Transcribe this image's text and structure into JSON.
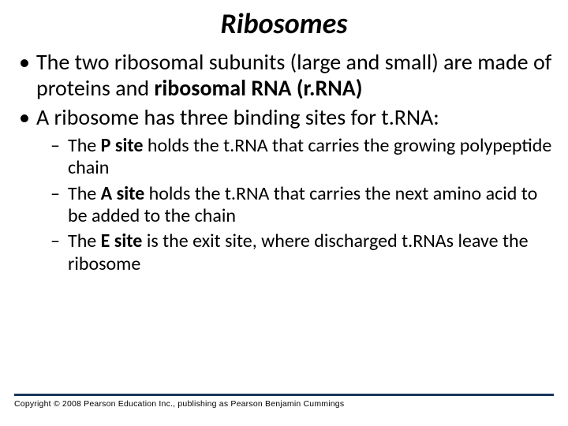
{
  "title": "Ribosomes",
  "bullets": {
    "b1_pre": "The two ribosomal subunits (large and small) are made of proteins and ",
    "b1_bold": "ribosomal RNA (r.RNA)",
    "b2": "A ribosome has three binding sites for t.RNA:",
    "sub1_pre": "The ",
    "sub1_bold": "P site",
    "sub1_post": " holds the t.RNA that carries the growing polypeptide chain",
    "sub2_pre": "The ",
    "sub2_bold": "A site",
    "sub2_post": " holds the t.RNA that carries the next amino acid to be added to the chain",
    "sub3_pre": "The ",
    "sub3_bold": "E site",
    "sub3_post": " is the exit site, where discharged t.RNAs leave the ribosome"
  },
  "footer": {
    "rule_color": "#17365d",
    "copyright": "Copyright © 2008 Pearson Education Inc., publishing as Pearson Benjamin Cummings"
  },
  "style": {
    "background": "#ffffff",
    "text_color": "#000000",
    "title_fontsize": 36,
    "body_fontsize": 28,
    "sub_fontsize": 24,
    "copyright_fontsize": 10.5
  }
}
